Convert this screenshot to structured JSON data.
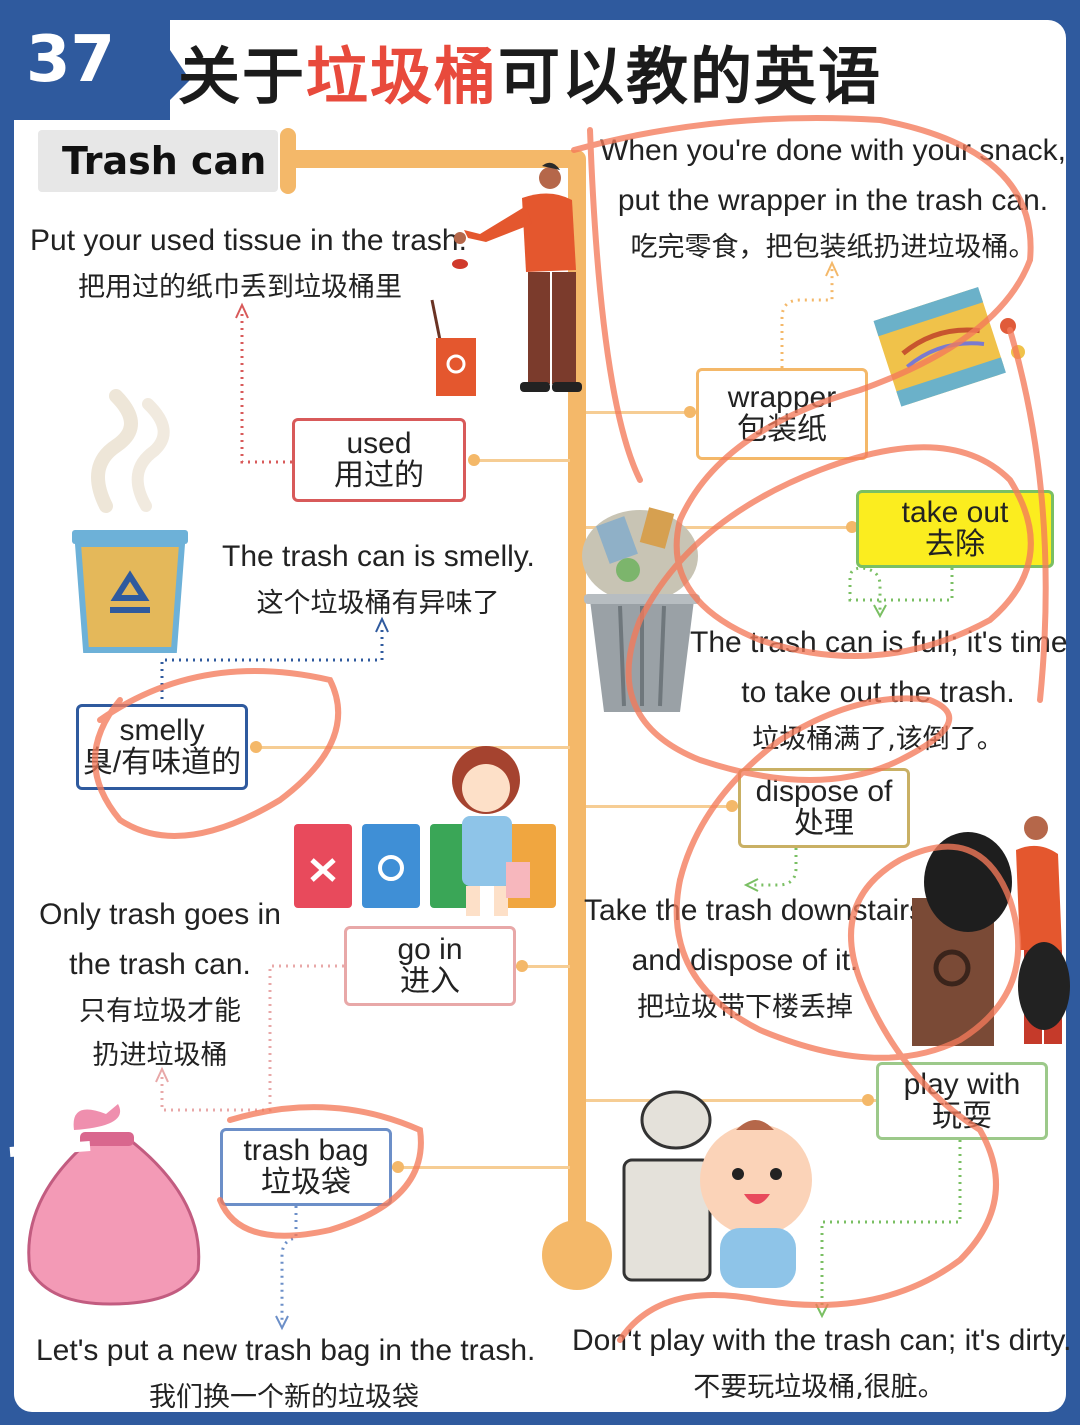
{
  "header": {
    "number": "37",
    "title_pre": "关于",
    "title_hl": "垃圾桶",
    "title_post": "可以教的英语",
    "tag": "Trash can"
  },
  "vocab": {
    "used": {
      "en": "used",
      "zh": "用过的"
    },
    "wrapper": {
      "en": "wrapper",
      "zh": "包装纸"
    },
    "take_out": {
      "en": "take out",
      "zh": "去除"
    },
    "smelly": {
      "en": "smelly",
      "zh": "臭/有味道的"
    },
    "dispose_of": {
      "en": "dispose of",
      "zh": "处理"
    },
    "go_in": {
      "en": "go in",
      "zh": "进入"
    },
    "play_with": {
      "en": "play with",
      "zh": "玩耍"
    },
    "trash_bag": {
      "en": "trash bag",
      "zh": "垃圾袋"
    }
  },
  "sentences": {
    "tissue": {
      "en": "Put your used tissue in the trash.",
      "zh": "把用过的纸巾丢到垃圾桶里"
    },
    "snack": {
      "en1": "When you're done with your snack,",
      "en2": "put the wrapper in the trash can.",
      "zh": "吃完零食，把包装纸扔进垃圾桶。"
    },
    "smelly": {
      "en": "The trash can is smelly.",
      "zh": "这个垃圾桶有异味了"
    },
    "full": {
      "en1": "The trash can is full; it's time",
      "en2": "to take out the trash.",
      "zh": "垃圾桶满了,该倒了。"
    },
    "only": {
      "en1": "Only trash goes in",
      "en2": "the trash can.",
      "zh1": "只有垃圾才能",
      "zh2": "扔进垃圾桶"
    },
    "downstairs": {
      "en1": "Take the trash downstairs",
      "en2": "and dispose of it.",
      "zh": "把垃圾带下楼丢掉"
    },
    "newbag": {
      "en": "Let's put a new trash bag in the trash.",
      "zh": "我们换一个新的垃圾袋"
    },
    "dirty": {
      "en": "Don't play with the trash can; it's dirty.",
      "zh": "不要玩垃圾桶,很脏。"
    }
  },
  "colors": {
    "frame": "#2f5a9e",
    "trunk": "#f4b869",
    "title_highlight": "#e84a3c",
    "scribble": "#f47a5a",
    "take_out_fill": "#fbed1f"
  }
}
